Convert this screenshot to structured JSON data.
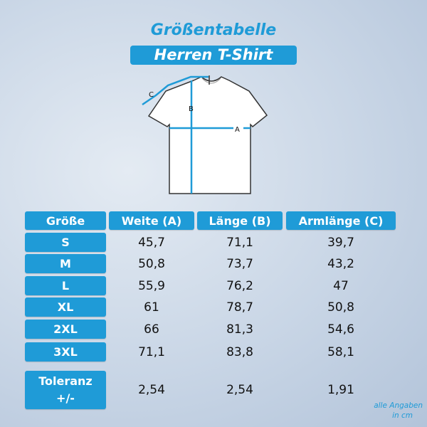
{
  "title": "Größentabelle",
  "subtitle": "Herren T-Shirt",
  "diagram": {
    "labels": {
      "a": "A",
      "b": "B",
      "c": "C"
    },
    "accent": "#1f9bd7"
  },
  "table": {
    "headers": [
      "Größe",
      "Weite (A)",
      "Länge (B)",
      "Armlänge (C)"
    ],
    "rows": [
      {
        "size": "S",
        "a": "45,7",
        "b": "71,1",
        "c": "39,7"
      },
      {
        "size": "M",
        "a": "50,8",
        "b": "73,7",
        "c": "43,2"
      },
      {
        "size": "L",
        "a": "55,9",
        "b": "76,2",
        "c": "47"
      },
      {
        "size": "XL",
        "a": "61",
        "b": "78,7",
        "c": "50,8"
      },
      {
        "size": "2XL",
        "a": "66",
        "b": "81,3",
        "c": "54,6"
      },
      {
        "size": "3XL",
        "a": "71,1",
        "b": "83,8",
        "c": "58,1"
      }
    ],
    "tolerance": {
      "label_line1": "Toleranz",
      "label_line2": "+/-",
      "a": "2,54",
      "b": "2,54",
      "c": "1,91"
    }
  },
  "note": {
    "line1": "alle Angaben",
    "line2": "in cm"
  }
}
